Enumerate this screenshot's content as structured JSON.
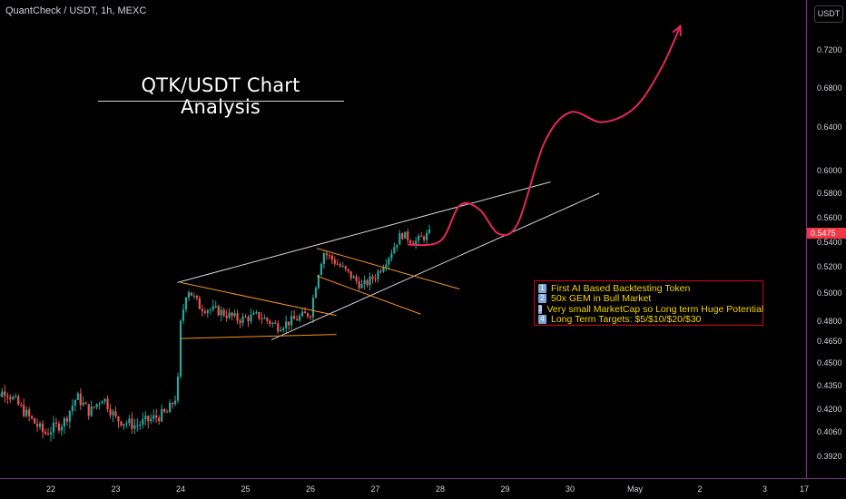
{
  "header": {
    "symbol_line": "QuantCheck / USDT, 1h, MEXC"
  },
  "currency_button": "USDT",
  "title": "QTK/USDT Chart Analysis",
  "current_price": "0.5475",
  "notes": [
    {
      "num": "1",
      "text": "First AI Based Backtesting Token"
    },
    {
      "num": "2",
      "text": "50x GEM in Bull Market"
    },
    {
      "num": "3",
      "text": "Very small MarketCap so Long term Huge Potential"
    },
    {
      "num": "4",
      "text": "Long Term Targets: $5/$10/$20/$30"
    }
  ],
  "colors": {
    "up": "#26a69a",
    "down": "#ef5350",
    "projection": "#e8275a",
    "trendline": "#d1d4dc",
    "channel": "#f7931a",
    "axis": "#7b2a8a"
  },
  "chart_data": {
    "type": "candlestick",
    "timeframe": "1h",
    "y_axis": {
      "min": 0.385,
      "max": 0.75,
      "ticks": [
        "0.7200",
        "0.6800",
        "0.6400",
        "0.6000",
        "0.5800",
        "0.5600",
        "0.5400",
        "0.5200",
        "0.5000",
        "0.4800",
        "0.4650",
        "0.4500",
        "0.4350",
        "0.4200",
        "0.4060",
        "0.3920"
      ]
    },
    "x_axis": {
      "ticks": [
        "22",
        "23",
        "24",
        "25",
        "26",
        "27",
        "28",
        "29",
        "30",
        "May",
        "2",
        "3",
        "17"
      ]
    },
    "price_path": [
      {
        "day": 21.0,
        "price": 0.425
      },
      {
        "day": 21.3,
        "price": 0.432
      },
      {
        "day": 21.6,
        "price": 0.418
      },
      {
        "day": 21.9,
        "price": 0.405
      },
      {
        "day": 22.2,
        "price": 0.412
      },
      {
        "day": 22.4,
        "price": 0.428
      },
      {
        "day": 22.6,
        "price": 0.418
      },
      {
        "day": 22.8,
        "price": 0.428
      },
      {
        "day": 23.0,
        "price": 0.414
      },
      {
        "day": 23.3,
        "price": 0.41
      },
      {
        "day": 23.5,
        "price": 0.413
      },
      {
        "day": 23.8,
        "price": 0.418
      },
      {
        "day": 23.95,
        "price": 0.43
      },
      {
        "day": 24.0,
        "price": 0.478
      },
      {
        "day": 24.1,
        "price": 0.504
      },
      {
        "day": 24.3,
        "price": 0.49
      },
      {
        "day": 24.6,
        "price": 0.487
      },
      {
        "day": 24.9,
        "price": 0.481
      },
      {
        "day": 25.2,
        "price": 0.484
      },
      {
        "day": 25.5,
        "price": 0.476
      },
      {
        "day": 25.8,
        "price": 0.482
      },
      {
        "day": 26.0,
        "price": 0.486
      },
      {
        "day": 26.1,
        "price": 0.511
      },
      {
        "day": 26.2,
        "price": 0.532
      },
      {
        "day": 26.4,
        "price": 0.523
      },
      {
        "day": 26.6,
        "price": 0.514
      },
      {
        "day": 26.8,
        "price": 0.505
      },
      {
        "day": 27.0,
        "price": 0.513
      },
      {
        "day": 27.2,
        "price": 0.528
      },
      {
        "day": 27.4,
        "price": 0.547
      },
      {
        "day": 27.6,
        "price": 0.54
      },
      {
        "day": 27.85,
        "price": 0.5475
      }
    ],
    "projection_path": [
      {
        "day": 27.5,
        "price": 0.538
      },
      {
        "day": 28.0,
        "price": 0.541
      },
      {
        "day": 28.3,
        "price": 0.57
      },
      {
        "day": 28.6,
        "price": 0.567
      },
      {
        "day": 28.9,
        "price": 0.547
      },
      {
        "day": 29.2,
        "price": 0.556
      },
      {
        "day": 29.6,
        "price": 0.625
      },
      {
        "day": 30.0,
        "price": 0.655
      },
      {
        "day": 30.5,
        "price": 0.645
      },
      {
        "day": 31.0,
        "price": 0.66
      },
      {
        "day": 31.4,
        "price": 0.7
      },
      {
        "day": 31.7,
        "price": 0.745
      }
    ],
    "trendlines": [
      {
        "kind": "wedge-top",
        "from": {
          "day": 23.95,
          "price": 0.508
        },
        "to": {
          "day": 29.7,
          "price": 0.59
        }
      },
      {
        "kind": "wedge-bottom",
        "from": {
          "day": 25.4,
          "price": 0.466
        },
        "to": {
          "day": 30.45,
          "price": 0.58
        }
      },
      {
        "kind": "flag1-top",
        "from": {
          "day": 24.0,
          "price": 0.508
        },
        "to": {
          "day": 26.4,
          "price": 0.484
        }
      },
      {
        "kind": "flag1-bottom",
        "from": {
          "day": 24.0,
          "price": 0.467
        },
        "to": {
          "day": 26.4,
          "price": 0.47
        }
      },
      {
        "kind": "flag2-top",
        "from": {
          "day": 26.1,
          "price": 0.535
        },
        "to": {
          "day": 28.3,
          "price": 0.503
        }
      },
      {
        "kind": "flag2-bottom",
        "from": {
          "day": 26.1,
          "price": 0.513
        },
        "to": {
          "day": 27.7,
          "price": 0.485
        }
      }
    ]
  }
}
